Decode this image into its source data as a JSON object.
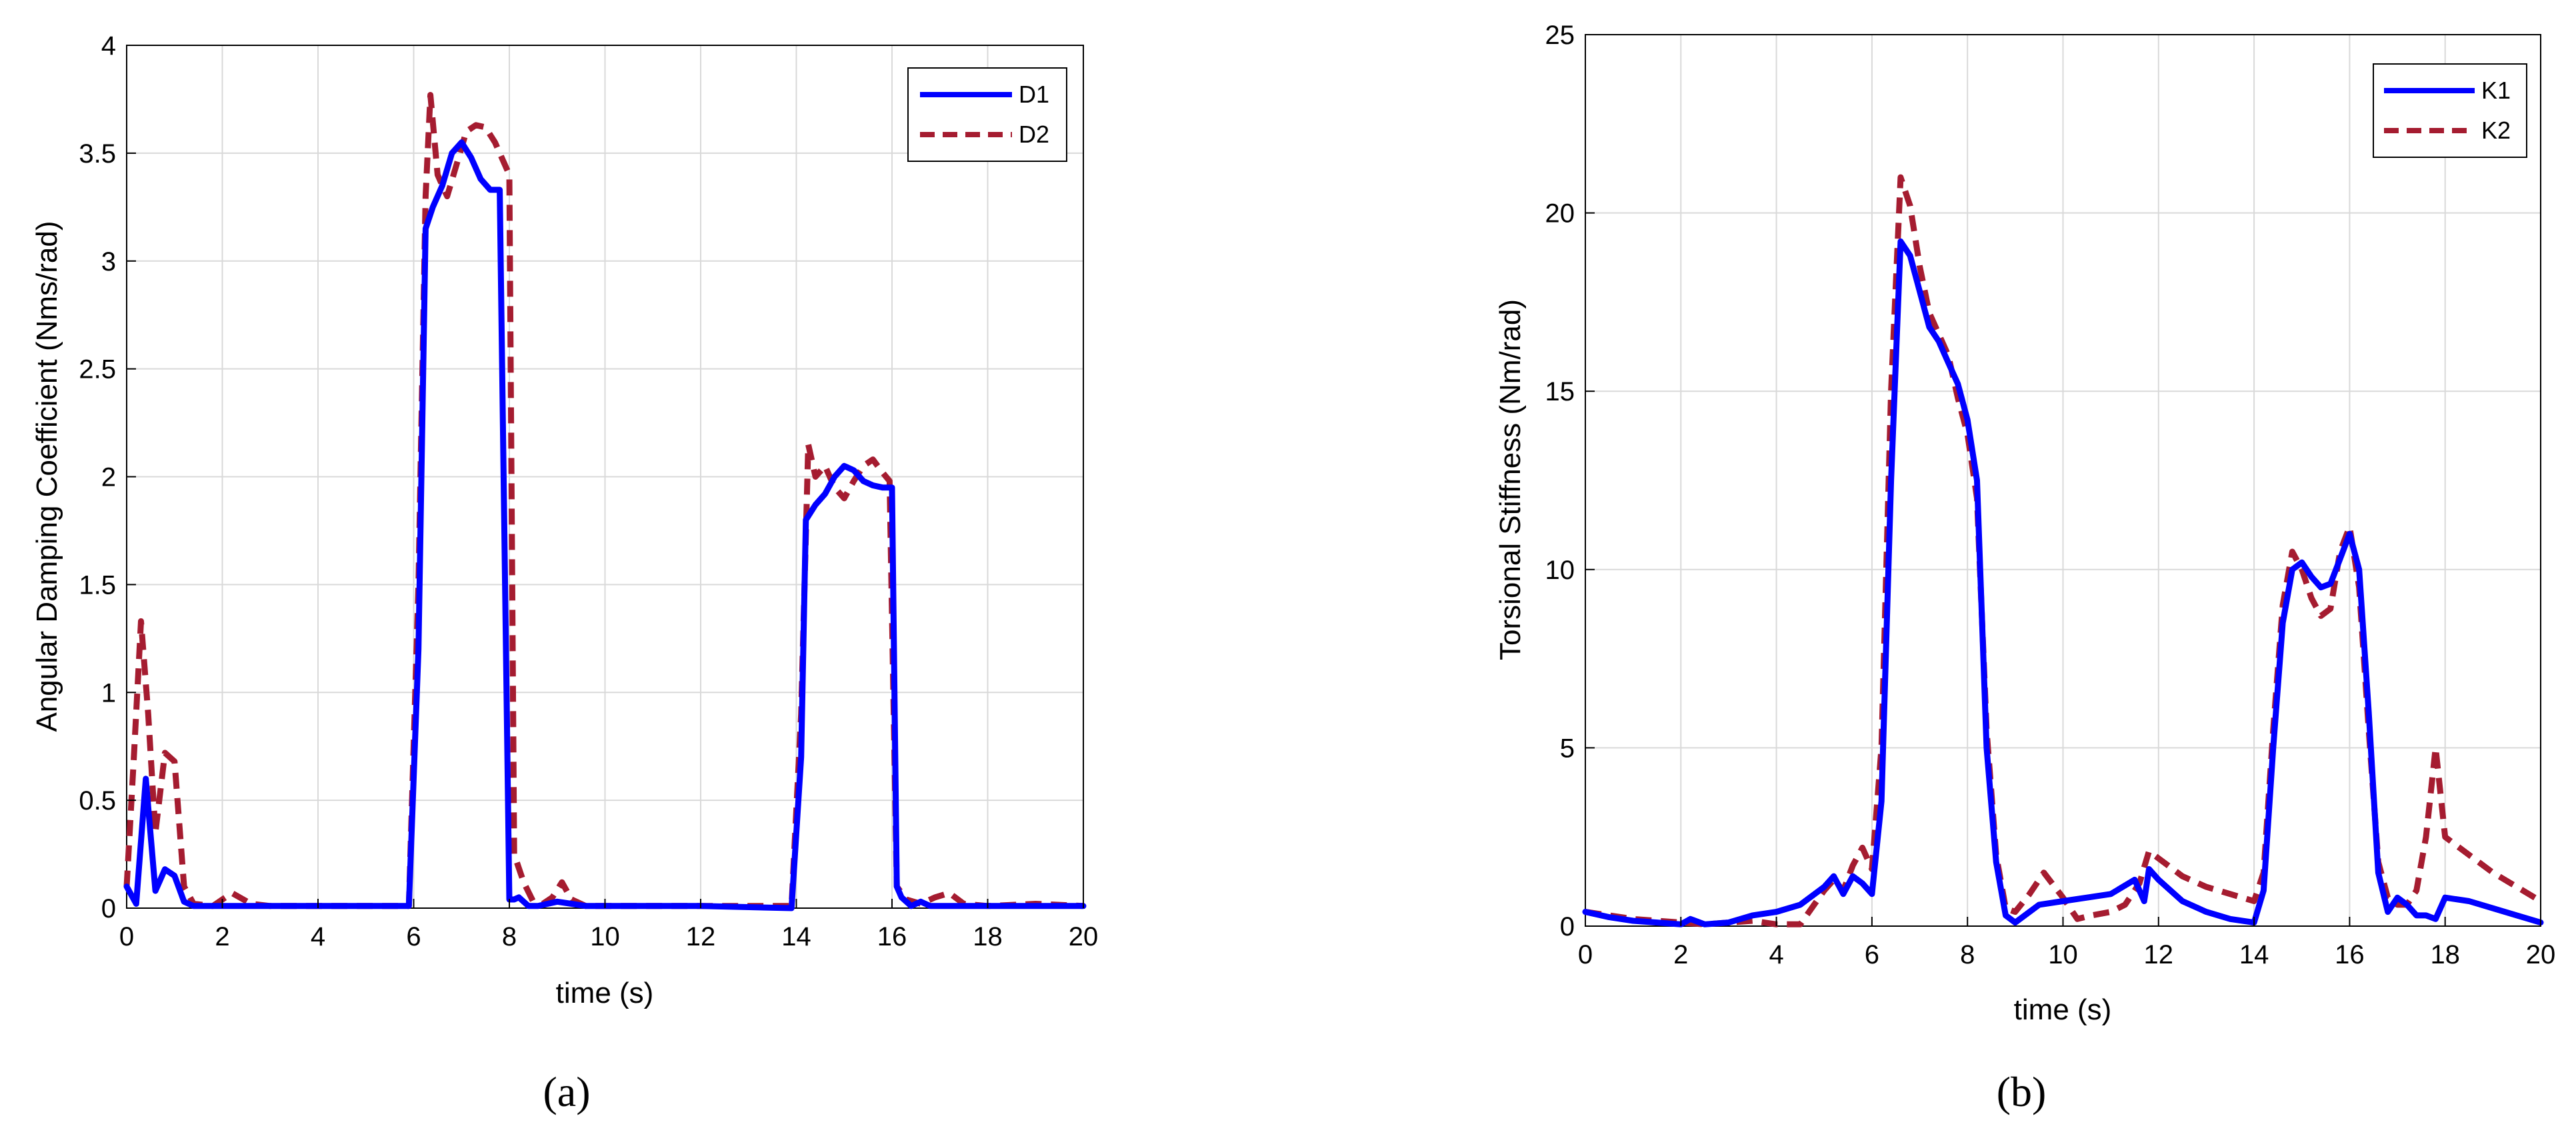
{
  "chart_data": [
    {
      "panel": "a",
      "panel_label": "(a)",
      "type": "line",
      "xlabel": "time (s)",
      "ylabel": "Angular Damping Coefficient (Nms/rad)",
      "xlim": [
        0,
        20
      ],
      "ylim": [
        0,
        4
      ],
      "xticks": [
        0,
        2,
        4,
        6,
        8,
        10,
        12,
        14,
        16,
        18,
        20
      ],
      "yticks": [
        0,
        0.5,
        1,
        1.5,
        2,
        2.5,
        3,
        3.5,
        4
      ],
      "ytick_labels": [
        "0",
        "0.5",
        "1",
        "1.5",
        "2",
        "2.5",
        "3",
        "3.5",
        "4"
      ],
      "grid": true,
      "legend_position": "top-right",
      "series": [
        {
          "name": "D1",
          "color": "#0000ff",
          "style": "solid",
          "x": [
            0,
            0.2,
            0.4,
            0.6,
            0.8,
            1.0,
            1.2,
            1.4,
            2,
            3,
            4,
            5,
            5.9,
            6.1,
            6.25,
            6.4,
            6.6,
            6.8,
            7.0,
            7.2,
            7.4,
            7.6,
            7.8,
            8.0,
            8.1,
            8.2,
            8.4,
            8.6,
            8.8,
            9.0,
            9.3,
            9.6,
            10,
            12,
            13.9,
            14.1,
            14.2,
            14.4,
            14.6,
            14.8,
            15.0,
            15.2,
            15.4,
            15.6,
            15.8,
            16.0,
            16.1,
            16.2,
            16.4,
            16.6,
            16.8,
            17,
            18,
            19,
            20
          ],
          "y": [
            0.1,
            0.02,
            0.6,
            0.08,
            0.18,
            0.15,
            0.03,
            0.01,
            0.01,
            0.01,
            0.01,
            0.01,
            0.01,
            1.2,
            3.15,
            3.25,
            3.35,
            3.5,
            3.55,
            3.48,
            3.38,
            3.33,
            3.33,
            0.04,
            0.04,
            0.05,
            0.01,
            0.01,
            0.02,
            0.03,
            0.02,
            0.01,
            0.01,
            0.01,
            0.0,
            0.7,
            1.8,
            1.87,
            1.92,
            2.0,
            2.05,
            2.03,
            1.98,
            1.96,
            1.95,
            1.95,
            0.1,
            0.05,
            0.01,
            0.03,
            0.01,
            0.01,
            0.01,
            0.01,
            0.01
          ]
        },
        {
          "name": "D2",
          "color": "#a51c30",
          "style": "dashed",
          "x": [
            0,
            0.15,
            0.3,
            0.45,
            0.6,
            0.8,
            1.0,
            1.2,
            1.4,
            1.8,
            2.2,
            2.6,
            3,
            4,
            5,
            5.9,
            6.1,
            6.25,
            6.35,
            6.5,
            6.7,
            6.9,
            7.1,
            7.3,
            7.5,
            7.7,
            7.9,
            8.0,
            8.1,
            8.3,
            8.5,
            8.7,
            8.9,
            9.1,
            9.3,
            9.6,
            10,
            12,
            13.9,
            14.1,
            14.25,
            14.4,
            14.6,
            14.8,
            15.0,
            15.2,
            15.4,
            15.6,
            15.8,
            15.95,
            16.1,
            16.3,
            16.6,
            16.9,
            17.2,
            17.5,
            18,
            19,
            20
          ],
          "y": [
            0.1,
            0.7,
            1.33,
            0.9,
            0.35,
            0.72,
            0.68,
            0.1,
            0.02,
            0.01,
            0.07,
            0.02,
            0.01,
            0.01,
            0.01,
            0.01,
            1.5,
            3.3,
            3.77,
            3.4,
            3.3,
            3.45,
            3.6,
            3.63,
            3.62,
            3.55,
            3.45,
            3.4,
            0.25,
            0.12,
            0.03,
            0.02,
            0.05,
            0.12,
            0.04,
            0.01,
            0.01,
            0.01,
            0.01,
            0.9,
            2.15,
            2.0,
            2.05,
            1.95,
            1.9,
            1.98,
            2.05,
            2.08,
            2.02,
            1.98,
            0.1,
            0.04,
            0.02,
            0.05,
            0.07,
            0.02,
            0.01,
            0.02,
            0.01
          ]
        }
      ]
    },
    {
      "panel": "b",
      "panel_label": "(b)",
      "type": "line",
      "xlabel": "time (s)",
      "ylabel": "Torsional Stiffness (Nm/rad)",
      "xlim": [
        0,
        20
      ],
      "ylim": [
        0,
        25
      ],
      "xticks": [
        0,
        2,
        4,
        6,
        8,
        10,
        12,
        14,
        16,
        18,
        20
      ],
      "yticks": [
        0,
        5,
        10,
        15,
        20,
        25
      ],
      "ytick_labels": [
        "0",
        "5",
        "10",
        "15",
        "20",
        "25"
      ],
      "grid": true,
      "legend_position": "top-right",
      "series": [
        {
          "name": "K1",
          "color": "#0000ff",
          "style": "solid",
          "x": [
            0,
            0.5,
            1,
            1.5,
            2,
            2.2,
            2.5,
            3,
            3.5,
            4,
            4.5,
            5,
            5.2,
            5.4,
            5.6,
            5.8,
            6.0,
            6.2,
            6.4,
            6.6,
            6.8,
            7.0,
            7.2,
            7.4,
            7.6,
            7.8,
            8.0,
            8.2,
            8.4,
            8.6,
            8.8,
            9.0,
            9.5,
            10,
            10.5,
            11,
            11.5,
            11.7,
            11.8,
            12,
            12.5,
            13,
            13.5,
            14,
            14.2,
            14.4,
            14.6,
            14.8,
            15.0,
            15.2,
            15.4,
            15.6,
            15.8,
            16.0,
            16.2,
            16.4,
            16.6,
            16.8,
            17.0,
            17.2,
            17.4,
            17.6,
            17.8,
            18,
            18.5,
            19,
            19.5,
            20
          ],
          "y": [
            0.4,
            0.25,
            0.15,
            0.1,
            0.05,
            0.2,
            0.05,
            0.1,
            0.3,
            0.4,
            0.6,
            1.1,
            1.4,
            0.9,
            1.4,
            1.2,
            0.9,
            3.5,
            12.5,
            19.2,
            18.8,
            17.8,
            16.8,
            16.4,
            15.8,
            15.2,
            14.2,
            12.5,
            5.0,
            1.8,
            0.3,
            0.1,
            0.6,
            0.7,
            0.8,
            0.9,
            1.3,
            0.7,
            1.6,
            1.3,
            0.7,
            0.4,
            0.2,
            0.1,
            1.0,
            5.0,
            8.5,
            10.0,
            10.2,
            9.8,
            9.5,
            9.6,
            10.3,
            11.0,
            10.0,
            6.0,
            1.5,
            0.4,
            0.8,
            0.6,
            0.3,
            0.3,
            0.2,
            0.8,
            0.7,
            0.5,
            0.3,
            0.1
          ]
        },
        {
          "name": "K2",
          "color": "#a51c30",
          "style": "dashed",
          "x": [
            0,
            0.5,
            1,
            1.5,
            2,
            2.5,
            3,
            3.5,
            4,
            4.5,
            5,
            5.2,
            5.4,
            5.6,
            5.8,
            6.0,
            6.2,
            6.4,
            6.6,
            6.8,
            7.0,
            7.2,
            7.4,
            7.6,
            7.8,
            8.0,
            8.2,
            8.4,
            8.6,
            8.8,
            9.0,
            9.3,
            9.6,
            10,
            10.3,
            10.6,
            11,
            11.3,
            11.6,
            11.8,
            12,
            12.5,
            13,
            13.5,
            14,
            14.2,
            14.4,
            14.6,
            14.8,
            15.0,
            15.2,
            15.4,
            15.6,
            15.8,
            16.0,
            16.2,
            16.4,
            16.6,
            16.8,
            17.0,
            17.2,
            17.4,
            17.6,
            17.8,
            18,
            18.5,
            19,
            19.5,
            20
          ],
          "y": [
            0.4,
            0.3,
            0.2,
            0.15,
            0.1,
            0.05,
            0.1,
            0.15,
            0.05,
            0.05,
            1.0,
            1.3,
            1.0,
            1.7,
            2.2,
            1.6,
            5.0,
            15.0,
            21.0,
            20.2,
            18.5,
            17.2,
            16.6,
            16.0,
            14.8,
            13.8,
            12.0,
            5.5,
            2.0,
            0.5,
            0.4,
            0.9,
            1.5,
            0.8,
            0.2,
            0.3,
            0.4,
            0.6,
            1.2,
            2.1,
            1.9,
            1.4,
            1.1,
            0.9,
            0.7,
            1.5,
            5.5,
            9.0,
            10.5,
            10.0,
            9.2,
            8.7,
            8.9,
            10.5,
            11.2,
            9.5,
            5.5,
            1.8,
            0.8,
            0.6,
            0.6,
            1.0,
            2.5,
            5.0,
            2.5,
            2.0,
            1.5,
            1.1,
            0.7
          ]
        }
      ]
    }
  ]
}
